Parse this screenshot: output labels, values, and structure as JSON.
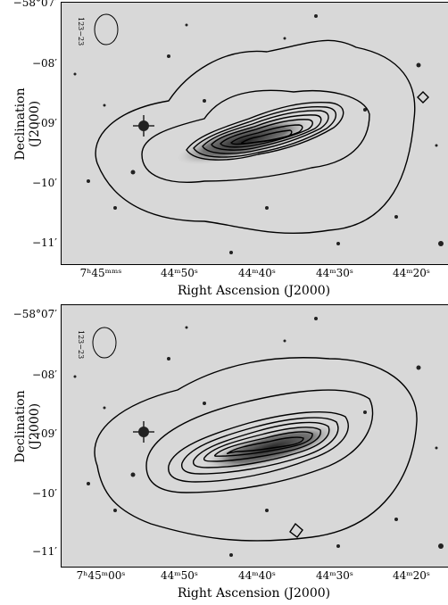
{
  "panels": [
    {
      "id": "top",
      "y_axis_label": "Declination (J2000)",
      "x_axis_label": "Right Ascension (J2000)",
      "y_ticks": [
        "−58°07′",
        "−08′",
        "−09′",
        "−10′",
        "−11′"
      ],
      "x_ticks": [
        "7ʰ45ᵐᵐˢ",
        "44ᵐ50ˢ",
        "44ᵐ40ˢ",
        "44ᵐ30ˢ",
        "44ᵐ20ˢ"
      ],
      "beam_label": "123−23"
    },
    {
      "id": "bottom",
      "y_axis_label": "Declination (J2000)",
      "x_axis_label": "Right Ascension (J2000)",
      "y_ticks": [
        "−58°07′",
        "−08′",
        "−09′",
        "−10′",
        "−11′"
      ],
      "x_ticks": [
        "7ʰ45ᵐ00ˢ",
        "44ᵐ50ˢ",
        "44ᵐ40ˢ",
        "44ᵐ30ˢ",
        "44ᵐ20ˢ"
      ],
      "beam_label": "123−23"
    }
  ]
}
